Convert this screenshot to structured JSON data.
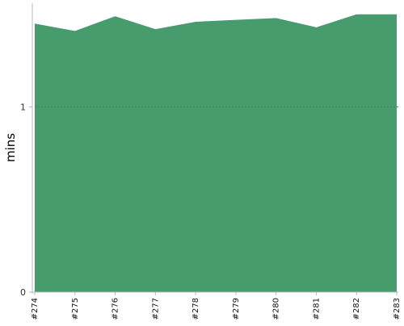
{
  "chart_data": {
    "type": "area",
    "title": "",
    "xlabel": "",
    "ylabel": "mins",
    "categories": [
      "#274",
      "#275",
      "#276",
      "#277",
      "#278",
      "#279",
      "#280",
      "#281",
      "#282",
      "#283"
    ],
    "series": [
      {
        "values": [
          1.45,
          1.41,
          1.49,
          1.42,
          1.46,
          1.47,
          1.48,
          1.43,
          1.5,
          1.5
        ]
      }
    ],
    "yticks": [
      0,
      1
    ],
    "ylim": [
      0,
      1.56
    ],
    "grid": "horizontal dashed at y ticks",
    "legend": "none",
    "colors": {
      "fill": "#479c6d",
      "axis": "#bbbbbb",
      "grid": "#3f8a60",
      "text": "#333333"
    }
  }
}
